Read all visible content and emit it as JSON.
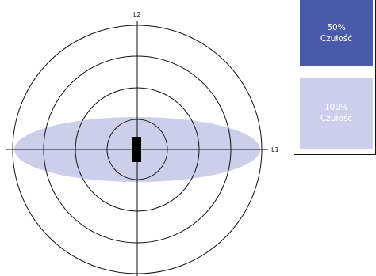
{
  "axes": {
    "horizontal_label": "L1",
    "vertical_label": "L2"
  },
  "colors": {
    "ellipse_fill": "#cdcfea",
    "line": "#111111",
    "sensor_block": "#000000",
    "legend_50_bg": "#4a5aaa",
    "legend_50_text": "#ffffff",
    "legend_100_bg": "#cdcfea",
    "legend_100_text": "#ffffff"
  },
  "legend": {
    "items": [
      {
        "percent": "50%",
        "label": "Czułość"
      },
      {
        "percent": "100%",
        "label": "Czułość"
      }
    ]
  }
}
